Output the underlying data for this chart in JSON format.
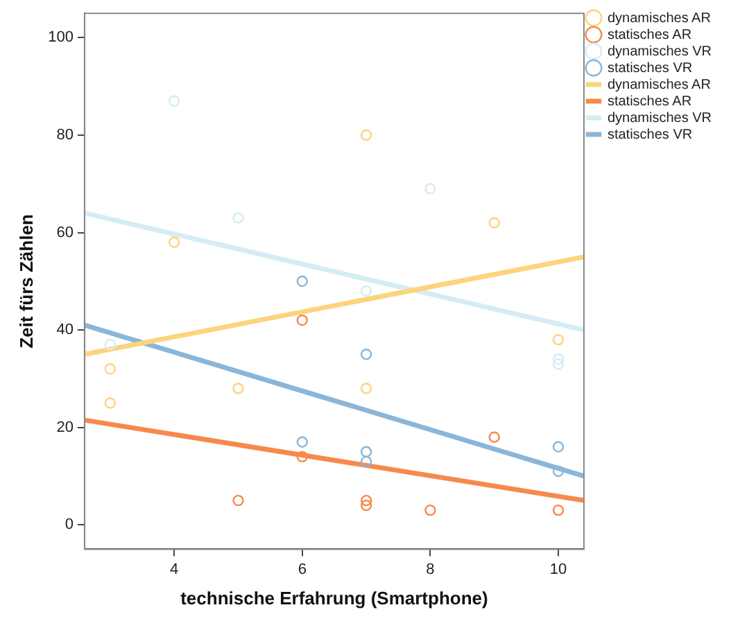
{
  "chart_data": {
    "type": "scatter",
    "xlabel": "technische Erfahrung (Smartphone)",
    "ylabel": "Zeit fürs Zählen",
    "xlim": [
      2.6,
      10.4
    ],
    "ylim": [
      -5,
      105
    ],
    "xticks": [
      4,
      6,
      8,
      10
    ],
    "yticks": [
      0,
      20,
      40,
      60,
      80,
      100
    ],
    "grid": false,
    "legend": "right",
    "marker": "circle",
    "series": [
      {
        "name": "dynamisches AR",
        "color": "#fcd47e",
        "x": [
          3,
          3,
          4,
          5,
          7,
          7,
          9,
          10
        ],
        "values": [
          32,
          25,
          58,
          28,
          80,
          28,
          62,
          38
        ]
      },
      {
        "name": "statisches AR",
        "color": "#f7894e",
        "x": [
          6,
          5,
          6,
          7,
          7,
          8,
          9,
          10
        ],
        "values": [
          42,
          5,
          14,
          5,
          4,
          3,
          18,
          3
        ]
      },
      {
        "name": "dynamisches VR",
        "color": "#d6ecf5",
        "x": [
          3,
          4,
          5,
          7,
          8,
          10,
          10
        ],
        "values": [
          37,
          87,
          63,
          48,
          69,
          34,
          33
        ]
      },
      {
        "name": "statisches VR",
        "color": "#8ab6d9",
        "x": [
          6,
          6,
          7,
          7,
          7,
          10,
          10
        ],
        "values": [
          50,
          17,
          35,
          15,
          13,
          16,
          11
        ]
      },
      {
        "name": "dynamisches AR",
        "type": "line",
        "marker": "none",
        "color": "#fcd47e",
        "x": [
          2.6,
          10.4
        ],
        "values": [
          35,
          55
        ]
      },
      {
        "name": "statisches AR",
        "type": "line",
        "marker": "none",
        "color": "#f7894e",
        "x": [
          2.6,
          10.4
        ],
        "values": [
          21.5,
          5
        ]
      },
      {
        "name": "dynamisches VR",
        "type": "line",
        "marker": "none",
        "color": "#d6ecf5",
        "x": [
          2.6,
          10.4
        ],
        "values": [
          64,
          40
        ]
      },
      {
        "name": "statisches VR",
        "type": "line",
        "marker": "none",
        "color": "#8ab6d9",
        "x": [
          2.6,
          10.4
        ],
        "values": [
          41,
          10
        ]
      }
    ]
  }
}
